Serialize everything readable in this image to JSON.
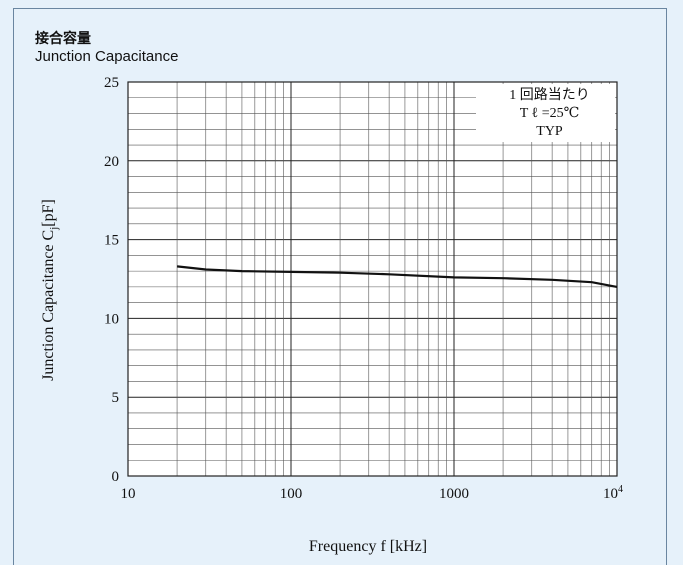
{
  "chart_data": {
    "type": "line",
    "title": "接合容量",
    "subtitle": "Junction Capacitance",
    "xlabel": "Frequency f [kHz]",
    "ylabel_main": "Junction Capacitance C",
    "ylabel_sub": "j",
    "ylabel_unit": "[pF]",
    "xscale": "log",
    "xlim": [
      10,
      10000
    ],
    "ylim": [
      0,
      25
    ],
    "grid": true,
    "x_ticks": [
      "10",
      "100",
      "1000",
      "10"
    ],
    "x_tick_last_exp": "4",
    "y_ticks": [
      "0",
      "5",
      "10",
      "15",
      "20",
      "25"
    ],
    "legend_position": "top-right",
    "annotations": [
      "1 回路当たり",
      "T ℓ =25℃",
      "TYP"
    ],
    "series": [
      {
        "x": [
          20,
          30,
          50,
          100,
          200,
          400,
          1000,
          2000,
          4000,
          7000,
          10000
        ],
        "values": [
          13.3,
          13.1,
          13.0,
          12.95,
          12.9,
          12.8,
          12.6,
          12.55,
          12.45,
          12.3,
          12.0
        ]
      }
    ]
  }
}
